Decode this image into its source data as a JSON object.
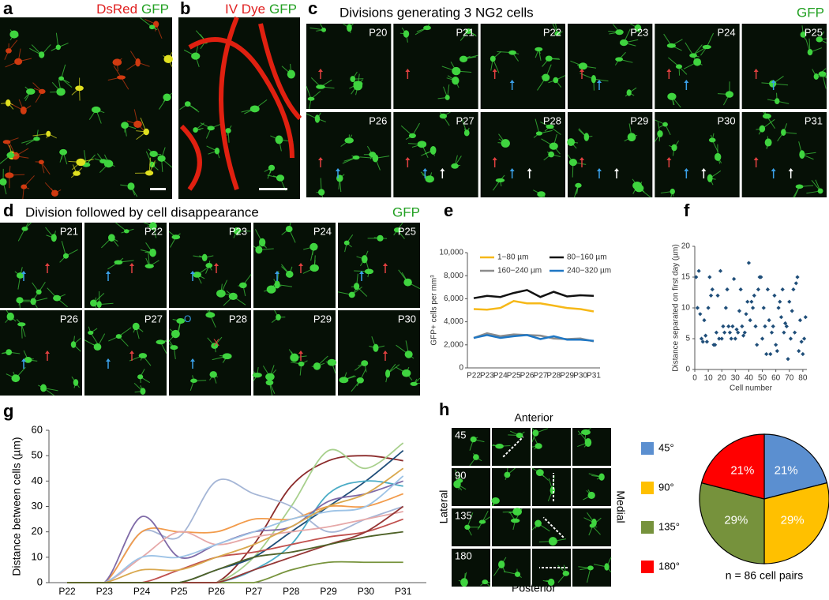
{
  "panels": {
    "a": {
      "label": "a",
      "stain": [
        "DsRed",
        "GFP"
      ]
    },
    "b": {
      "label": "b",
      "stain": [
        "IV Dye",
        "GFP"
      ]
    },
    "c": {
      "label": "c",
      "title": "Divisions generating 3 NG2 cells",
      "channel": "GFP",
      "timepoints": [
        "P20",
        "P21",
        "P22",
        "P23",
        "P24",
        "P25",
        "P26",
        "P27",
        "P28",
        "P29",
        "P30",
        "P31"
      ]
    },
    "d": {
      "label": "d",
      "title": "Division followed by cell disappearance",
      "channel": "GFP",
      "timepoints": [
        "P21",
        "P22",
        "P23",
        "P24",
        "P25",
        "P26",
        "P27",
        "P28",
        "P29",
        "P30"
      ],
      "markers": [
        "O",
        "X"
      ]
    },
    "e": {
      "label": "e"
    },
    "f": {
      "label": "f"
    },
    "g": {
      "label": "g"
    },
    "h": {
      "label": "h",
      "anterior": "Anterior",
      "posterior": "Posterior",
      "lateral": "Lateral",
      "medial": "Medial",
      "angles": [
        "45",
        "90",
        "135",
        "180"
      ]
    }
  },
  "chart_data": [
    {
      "type": "line",
      "ylabel": "GFP+ cells per mm³",
      "categories": [
        "P22",
        "P23",
        "P24",
        "P25",
        "P26",
        "P27",
        "P28",
        "P29",
        "P30",
        "P31"
      ],
      "ylim": [
        0,
        10000
      ],
      "yticks": [
        0,
        {
          "value": 2000,
          "label": "2,000"
        },
        {
          "value": 4000,
          "label": "4,000"
        },
        {
          "value": 6000,
          "label": "6,000"
        },
        {
          "value": 8000,
          "label": "8,000"
        },
        {
          "value": 10000,
          "label": "10,000"
        }
      ],
      "series": [
        {
          "name": "1−80 µm",
          "color": "#f6b818",
          "values": [
            5100,
            5050,
            5200,
            5800,
            5600,
            5600,
            5400,
            5200,
            5100,
            4900
          ]
        },
        {
          "name": "80−160 µm",
          "color": "#111111",
          "values": [
            6050,
            6250,
            6150,
            6500,
            6750,
            6150,
            6600,
            6200,
            6300,
            6250
          ]
        },
        {
          "name": "160−240 µm",
          "color": "#8c8c8c",
          "values": [
            2600,
            3000,
            2750,
            2900,
            2850,
            2800,
            2550,
            2500,
            2550,
            2300
          ]
        },
        {
          "name": "240−320 µm",
          "color": "#1f77c4",
          "values": [
            2600,
            2850,
            2600,
            2750,
            2850,
            2500,
            2750,
            2450,
            2450,
            2350
          ]
        }
      ]
    },
    {
      "type": "scatter",
      "xlabel": "Cell number",
      "ylabel": "Distance separated on first day (µm)",
      "color": "#1f4e79",
      "xlim": [
        0,
        83
      ],
      "xticks": [
        0,
        10,
        20,
        30,
        40,
        50,
        60,
        70,
        80
      ],
      "ylim": [
        0,
        20
      ],
      "yticks": [
        0,
        5,
        10,
        15,
        20
      ],
      "x": [
        1,
        2,
        3,
        4,
        5,
        6,
        7,
        8,
        9,
        10,
        11,
        12,
        13,
        14,
        15,
        16,
        17,
        18,
        19,
        20,
        21,
        22,
        23,
        24,
        25,
        26,
        27,
        28,
        29,
        30,
        31,
        32,
        33,
        34,
        35,
        36,
        37,
        38,
        39,
        40,
        41,
        42,
        43,
        44,
        45,
        46,
        47,
        48,
        49,
        50,
        51,
        52,
        53,
        54,
        55,
        56,
        57,
        58,
        59,
        60,
        61,
        62,
        63,
        64,
        65,
        66,
        67,
        68,
        69,
        70,
        71,
        72,
        73,
        74,
        75,
        76,
        77,
        78,
        79,
        80,
        81,
        82
      ],
      "y": [
        15,
        10,
        16,
        9,
        5,
        4.5,
        8,
        5.5,
        4.5,
        10,
        15,
        12,
        13,
        4,
        4,
        6,
        12,
        5,
        16,
        5,
        7,
        6,
        10,
        13,
        7,
        6,
        5,
        7,
        14.7,
        5,
        6.5,
        6,
        9.5,
        13,
        7,
        5.5,
        6,
        9,
        11,
        17.3,
        8,
        11,
        10,
        12,
        7,
        4,
        13,
        15,
        15,
        5,
        10,
        7,
        2.5,
        13,
        8,
        2.5,
        6,
        7,
        12,
        4,
        3,
        10,
        11,
        8.5,
        13,
        6,
        7.5,
        7,
        1.7,
        11,
        5,
        9.5,
        13,
        6,
        14,
        15,
        3,
        8,
        4.5,
        2.5,
        5,
        8.5
      ]
    },
    {
      "type": "curves",
      "ylabel": "Distance between cells (µm)",
      "categories": [
        "P22",
        "P23",
        "P24",
        "P25",
        "P26",
        "P27",
        "P28",
        "P29",
        "P30",
        "P31"
      ],
      "ylim": [
        0,
        60
      ],
      "yticks": [
        0,
        10,
        20,
        30,
        40,
        50,
        60
      ],
      "series": [
        {
          "color": "#8b2b2b",
          "values": [
            0,
            0,
            0,
            0,
            0,
            15,
            38,
            48,
            50,
            48
          ]
        },
        {
          "color": "#a8d08d",
          "values": [
            0,
            0,
            0,
            0,
            0,
            10,
            30,
            52,
            45,
            55
          ]
        },
        {
          "color": "#a5b6d6",
          "values": [
            0,
            0,
            20,
            18,
            40,
            35,
            30,
            20,
            25,
            30
          ]
        },
        {
          "color": "#f29b4b",
          "values": [
            0,
            0,
            20,
            20,
            20,
            25,
            25,
            30,
            30,
            35
          ]
        },
        {
          "color": "#1f4e79",
          "values": [
            0,
            0,
            0,
            0,
            5,
            10,
            20,
            30,
            40,
            52
          ]
        },
        {
          "color": "#4bacc6",
          "values": [
            0,
            0,
            0,
            0,
            0,
            5,
            15,
            35,
            40,
            38
          ]
        },
        {
          "color": "#7f6aa7",
          "values": [
            0,
            0,
            26,
            10,
            15,
            20,
            22,
            32,
            35,
            40
          ]
        },
        {
          "color": "#e6a8a8",
          "values": [
            0,
            0,
            10,
            20,
            15,
            18,
            20,
            22,
            25,
            28
          ]
        },
        {
          "color": "#c0504d",
          "values": [
            0,
            0,
            0,
            5,
            10,
            12,
            15,
            18,
            20,
            25
          ]
        },
        {
          "color": "#77933c",
          "values": [
            0,
            0,
            0,
            0,
            0,
            0,
            5,
            8,
            8,
            8
          ]
        },
        {
          "color": "#9dc3e6",
          "values": [
            0,
            0,
            10,
            10,
            15,
            20,
            25,
            28,
            30,
            42
          ]
        },
        {
          "color": "#953735",
          "values": [
            0,
            0,
            0,
            0,
            0,
            5,
            10,
            15,
            20,
            30
          ]
        },
        {
          "color": "#d9a84e",
          "values": [
            0,
            0,
            5,
            5,
            10,
            15,
            22,
            30,
            35,
            45
          ]
        },
        {
          "color": "#4f6228",
          "values": [
            0,
            0,
            0,
            0,
            5,
            10,
            12,
            15,
            18,
            20
          ]
        }
      ]
    },
    {
      "type": "pie",
      "caption": "n = 86 cell pairs",
      "categories": [
        "45°",
        "90°",
        "135°",
        "180°"
      ],
      "values": [
        21,
        29,
        29,
        21
      ],
      "value_labels": [
        "21%",
        "29%",
        "29%",
        "21%"
      ],
      "colors": [
        "#5b8fd0",
        "#ffc000",
        "#76923c",
        "#ff0000"
      ]
    }
  ]
}
